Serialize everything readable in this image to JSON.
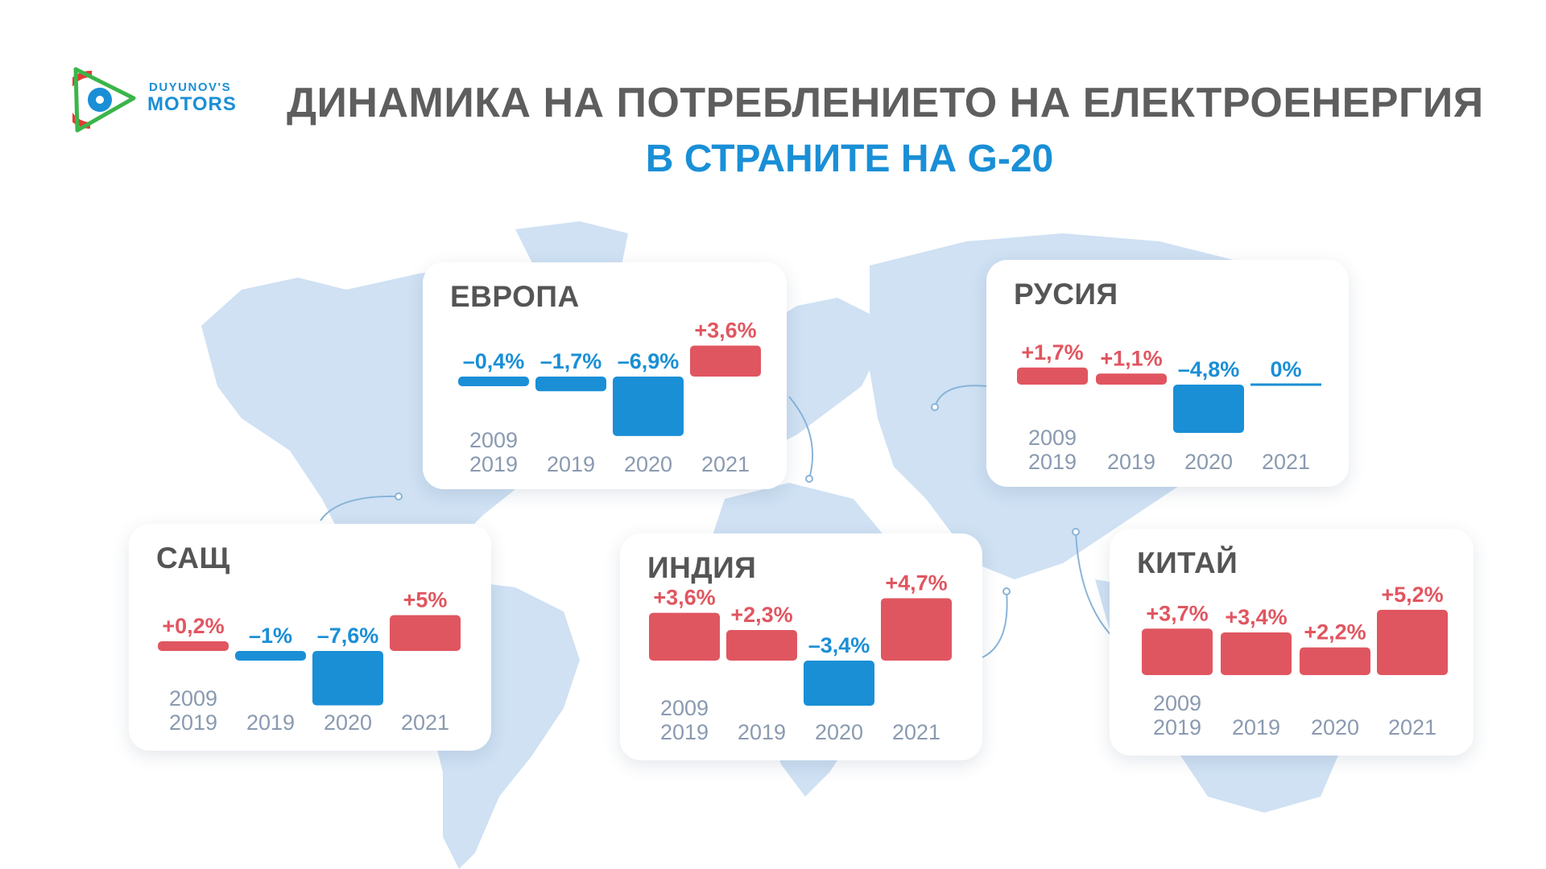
{
  "header": {
    "brand_top": "DUYUNOV'S",
    "brand_bottom": "MOTORS",
    "title": "ДИНАМИКА НА ПОТРЕБЛЕНИЕТО НА ЕЛЕКТРОЕНЕРГИЯ",
    "subtitle": "В СТРАНИТЕ НА G-20"
  },
  "colors": {
    "positive": "#e05660",
    "negative": "#1a8fd6",
    "title": "#5e5e5e",
    "year_label": "#8a9ab0",
    "map_land": "#cfe1f3",
    "logo_red": "#e53935",
    "logo_green": "#3bb54a",
    "logo_blue": "#1a8fd6"
  },
  "chart_data": [
    {
      "type": "bar",
      "title": "ЕВРОПА",
      "categories": [
        "2009\n2019",
        "2019",
        "2020",
        "2021"
      ],
      "values": [
        -0.4,
        -1.7,
        -6.9,
        3.6
      ],
      "value_labels": [
        "–0,4%",
        "–1,7%",
        "–6,9%",
        "+3,6%"
      ]
    },
    {
      "type": "bar",
      "title": "РУСИЯ",
      "categories": [
        "2009\n2019",
        "2019",
        "2020",
        "2021"
      ],
      "values": [
        1.7,
        1.1,
        -4.8,
        0
      ],
      "value_labels": [
        "+1,7%",
        "+1,1%",
        "–4,8%",
        "0%"
      ]
    },
    {
      "type": "bar",
      "title": "САЩ",
      "categories": [
        "2009\n2019",
        "2019",
        "2020",
        "2021"
      ],
      "values": [
        0.2,
        -1,
        -7.6,
        5
      ],
      "value_labels": [
        "+0,2%",
        "–1%",
        "–7,6%",
        "+5%"
      ]
    },
    {
      "type": "bar",
      "title": "ИНДИЯ",
      "categories": [
        "2009\n2019",
        "2019",
        "2020",
        "2021"
      ],
      "values": [
        3.6,
        2.3,
        -3.4,
        4.7
      ],
      "value_labels": [
        "+3,6%",
        "+2,3%",
        "–3,4%",
        "+4,7%"
      ]
    },
    {
      "type": "bar",
      "title": "КИТАЙ",
      "categories": [
        "2009\n2019",
        "2019",
        "2020",
        "2021"
      ],
      "values": [
        3.7,
        3.4,
        2.2,
        5.2
      ],
      "value_labels": [
        "+3,7%",
        "+3,4%",
        "+2,2%",
        "+5,2%"
      ]
    }
  ]
}
